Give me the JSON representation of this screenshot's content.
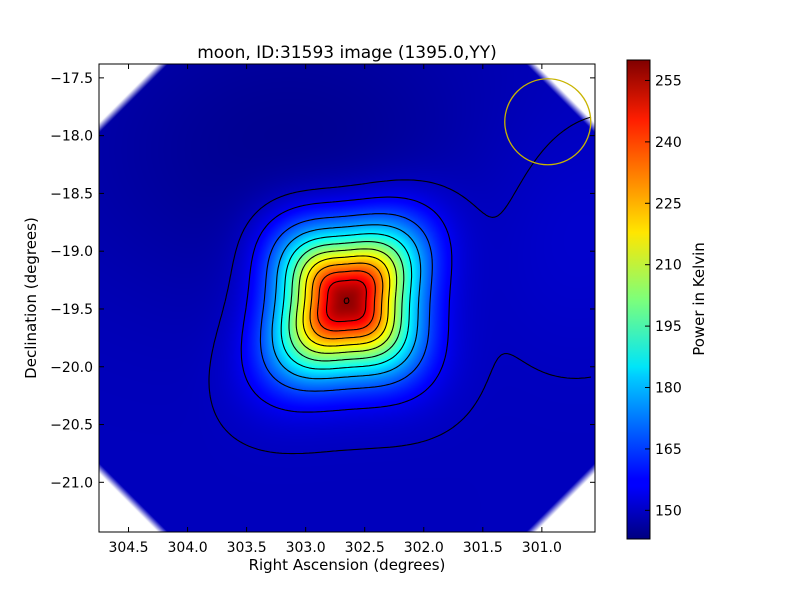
{
  "chart_data": {
    "type": "heatmap",
    "title": "moon, ID:31593 image (1395.0,YY)",
    "xlabel": "Right Ascension (degrees)",
    "ylabel": "Declination (degrees)",
    "xlim": [
      304.75,
      300.55
    ],
    "ylim": [
      -21.43,
      -17.38
    ],
    "x_ticks": [
      304.5,
      304.0,
      303.5,
      303.0,
      302.5,
      302.0,
      301.5,
      301.0
    ],
    "x_tick_labels": [
      "304.5",
      "304.0",
      "303.5",
      "303.0",
      "302.5",
      "302.0",
      "301.5",
      "301.0"
    ],
    "y_ticks": [
      -17.5,
      -18.0,
      -18.5,
      -19.0,
      -19.5,
      -20.0,
      -20.5,
      -21.0
    ],
    "y_tick_labels": [
      "−17.5",
      "−18.0",
      "−18.5",
      "−19.0",
      "−19.5",
      "−20.0",
      "−20.5",
      "−21.0"
    ],
    "colorbar": {
      "label": "Power in Kelvin",
      "range": [
        143,
        260
      ],
      "ticks": [
        150,
        165,
        180,
        195,
        210,
        225,
        240,
        255
      ],
      "tick_labels": [
        "150",
        "165",
        "180",
        "195",
        "210",
        "225",
        "240",
        "255"
      ],
      "colormap": "jet"
    },
    "source": {
      "ra": 302.65,
      "dec": -19.43,
      "peak_kelvin": 260
    },
    "background_kelvin": 150,
    "contour_count": 11,
    "beam_circle": {
      "ra": 300.95,
      "dec": -17.88,
      "color": "#c8b400"
    },
    "grid": false
  }
}
